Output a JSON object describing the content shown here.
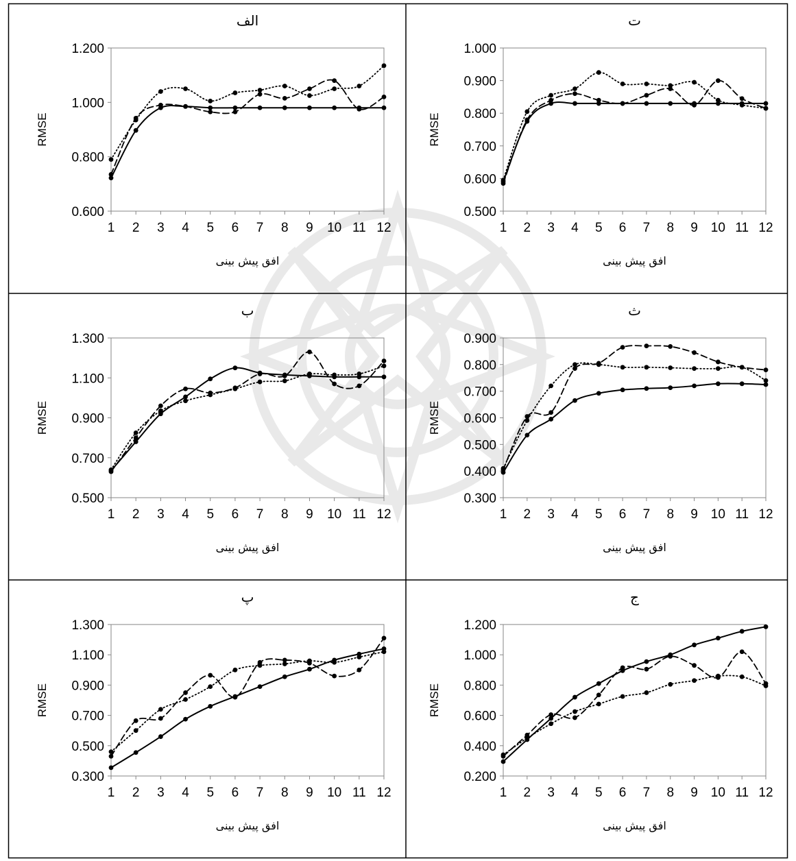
{
  "colors": {
    "line": "#000000",
    "axis": "#868686",
    "border": "#000000",
    "watermark": "#8c8c8c"
  },
  "chart_data": [
    {
      "id": "alef",
      "title": "الف",
      "type": "line",
      "xlabel": "افق پیش بینی",
      "ylabel": "RMSE",
      "categories": [
        "1",
        "2",
        "3",
        "4",
        "5",
        "6",
        "7",
        "8",
        "9",
        "10",
        "11",
        "12"
      ],
      "ylim": [
        0.6,
        1.2
      ],
      "yticks": [
        "0.600",
        "0.800",
        "1.000",
        "1.200"
      ],
      "series": [
        {
          "style": "solid",
          "values": [
            0.722,
            0.897,
            0.98,
            0.985,
            0.98,
            0.98,
            0.98,
            0.98,
            0.98,
            0.98,
            0.98,
            0.98
          ]
        },
        {
          "style": "dashed",
          "values": [
            0.735,
            0.942,
            0.99,
            0.985,
            0.965,
            0.965,
            1.03,
            1.015,
            1.05,
            1.08,
            0.975,
            1.02
          ]
        },
        {
          "style": "dotted",
          "values": [
            0.79,
            0.935,
            1.04,
            1.05,
            1.005,
            1.035,
            1.045,
            1.06,
            1.025,
            1.05,
            1.06,
            1.135
          ]
        }
      ]
    },
    {
      "id": "te",
      "title": "ت",
      "type": "line",
      "xlabel": "افق پیش بینی",
      "ylabel": "RMSE",
      "categories": [
        "1",
        "2",
        "3",
        "4",
        "5",
        "6",
        "7",
        "8",
        "9",
        "10",
        "11",
        "12"
      ],
      "ylim": [
        0.5,
        1.0
      ],
      "yticks": [
        "0.500",
        "0.600",
        "0.700",
        "0.800",
        "0.900",
        "1.000"
      ],
      "series": [
        {
          "style": "solid",
          "values": [
            0.59,
            0.775,
            0.83,
            0.83,
            0.83,
            0.83,
            0.83,
            0.83,
            0.83,
            0.83,
            0.83,
            0.83
          ]
        },
        {
          "style": "dashed",
          "values": [
            0.585,
            0.78,
            0.84,
            0.86,
            0.84,
            0.83,
            0.855,
            0.875,
            0.825,
            0.9,
            0.845,
            0.815
          ]
        },
        {
          "style": "dotted",
          "values": [
            0.595,
            0.805,
            0.855,
            0.875,
            0.925,
            0.89,
            0.89,
            0.885,
            0.895,
            0.84,
            0.825,
            0.815
          ]
        }
      ]
    },
    {
      "id": "be",
      "title": "ب",
      "type": "line",
      "xlabel": "افق پیش بینی",
      "ylabel": "RMSE",
      "categories": [
        "1",
        "2",
        "3",
        "4",
        "5",
        "6",
        "7",
        "8",
        "9",
        "10",
        "11",
        "12"
      ],
      "ylim": [
        0.5,
        1.3
      ],
      "yticks": [
        "0.500",
        "0.700",
        "0.900",
        "1.100",
        "1.300"
      ],
      "series": [
        {
          "style": "solid",
          "values": [
            0.635,
            0.78,
            0.92,
            1.005,
            1.095,
            1.15,
            1.125,
            1.115,
            1.11,
            1.105,
            1.105,
            1.105
          ]
        },
        {
          "style": "dashed",
          "values": [
            0.63,
            0.8,
            0.96,
            1.045,
            1.025,
            1.05,
            1.12,
            1.11,
            1.23,
            1.07,
            1.06,
            1.185
          ]
        },
        {
          "style": "dotted",
          "values": [
            0.64,
            0.825,
            0.935,
            0.985,
            1.015,
            1.045,
            1.08,
            1.085,
            1.12,
            1.115,
            1.12,
            1.16
          ]
        }
      ]
    },
    {
      "id": "se",
      "title": "ث",
      "type": "line",
      "xlabel": "افق پیش بینی",
      "ylabel": "RMSE",
      "categories": [
        "1",
        "2",
        "3",
        "4",
        "5",
        "6",
        "7",
        "8",
        "9",
        "10",
        "11",
        "12"
      ],
      "ylim": [
        0.3,
        0.9
      ],
      "yticks": [
        "0.300",
        "0.400",
        "0.500",
        "0.600",
        "0.700",
        "0.800",
        "0.900"
      ],
      "series": [
        {
          "style": "solid",
          "values": [
            0.395,
            0.535,
            0.595,
            0.665,
            0.692,
            0.705,
            0.71,
            0.713,
            0.72,
            0.728,
            0.728,
            0.725
          ]
        },
        {
          "style": "dashed",
          "values": [
            0.405,
            0.605,
            0.62,
            0.785,
            0.805,
            0.865,
            0.87,
            0.868,
            0.845,
            0.81,
            0.79,
            0.78
          ]
        },
        {
          "style": "dotted",
          "values": [
            0.41,
            0.59,
            0.72,
            0.8,
            0.8,
            0.79,
            0.79,
            0.788,
            0.785,
            0.785,
            0.79,
            0.74
          ]
        }
      ]
    },
    {
      "id": "pe",
      "title": "پ",
      "type": "line",
      "xlabel": "افق پیش بینی",
      "ylabel": "RMSE",
      "categories": [
        "1",
        "2",
        "3",
        "4",
        "5",
        "6",
        "7",
        "8",
        "9",
        "10",
        "11",
        "12"
      ],
      "ylim": [
        0.3,
        1.3
      ],
      "yticks": [
        "0.300",
        "0.500",
        "0.700",
        "0.900",
        "1.100",
        "1.300"
      ],
      "series": [
        {
          "style": "solid",
          "values": [
            0.355,
            0.455,
            0.56,
            0.675,
            0.76,
            0.825,
            0.89,
            0.955,
            1.005,
            1.065,
            1.105,
            1.14
          ]
        },
        {
          "style": "dashed",
          "values": [
            0.43,
            0.665,
            0.68,
            0.85,
            0.965,
            0.82,
            1.05,
            1.065,
            1.045,
            0.96,
            1.0,
            1.21
          ]
        },
        {
          "style": "dotted",
          "values": [
            0.46,
            0.6,
            0.74,
            0.805,
            0.89,
            1.0,
            1.03,
            1.04,
            1.06,
            1.05,
            1.085,
            1.12
          ]
        }
      ]
    },
    {
      "id": "jim",
      "title": "ج",
      "type": "line",
      "xlabel": "افق پیش بینی",
      "ylabel": "RMSE",
      "categories": [
        "1",
        "2",
        "3",
        "4",
        "5",
        "6",
        "7",
        "8",
        "9",
        "10",
        "11",
        "12"
      ],
      "ylim": [
        0.2,
        1.2
      ],
      "yticks": [
        "0.200",
        "0.400",
        "0.600",
        "0.800",
        "1.000",
        "1.200"
      ],
      "series": [
        {
          "style": "solid",
          "values": [
            0.295,
            0.44,
            0.58,
            0.72,
            0.81,
            0.895,
            0.955,
            1.0,
            1.065,
            1.11,
            1.155,
            1.185
          ]
        },
        {
          "style": "dashed",
          "values": [
            0.33,
            0.47,
            0.605,
            0.585,
            0.735,
            0.915,
            0.905,
            0.99,
            0.93,
            0.85,
            1.02,
            0.81
          ]
        },
        {
          "style": "dotted",
          "values": [
            0.34,
            0.45,
            0.545,
            0.625,
            0.675,
            0.725,
            0.75,
            0.805,
            0.83,
            0.86,
            0.855,
            0.795
          ]
        }
      ]
    }
  ]
}
